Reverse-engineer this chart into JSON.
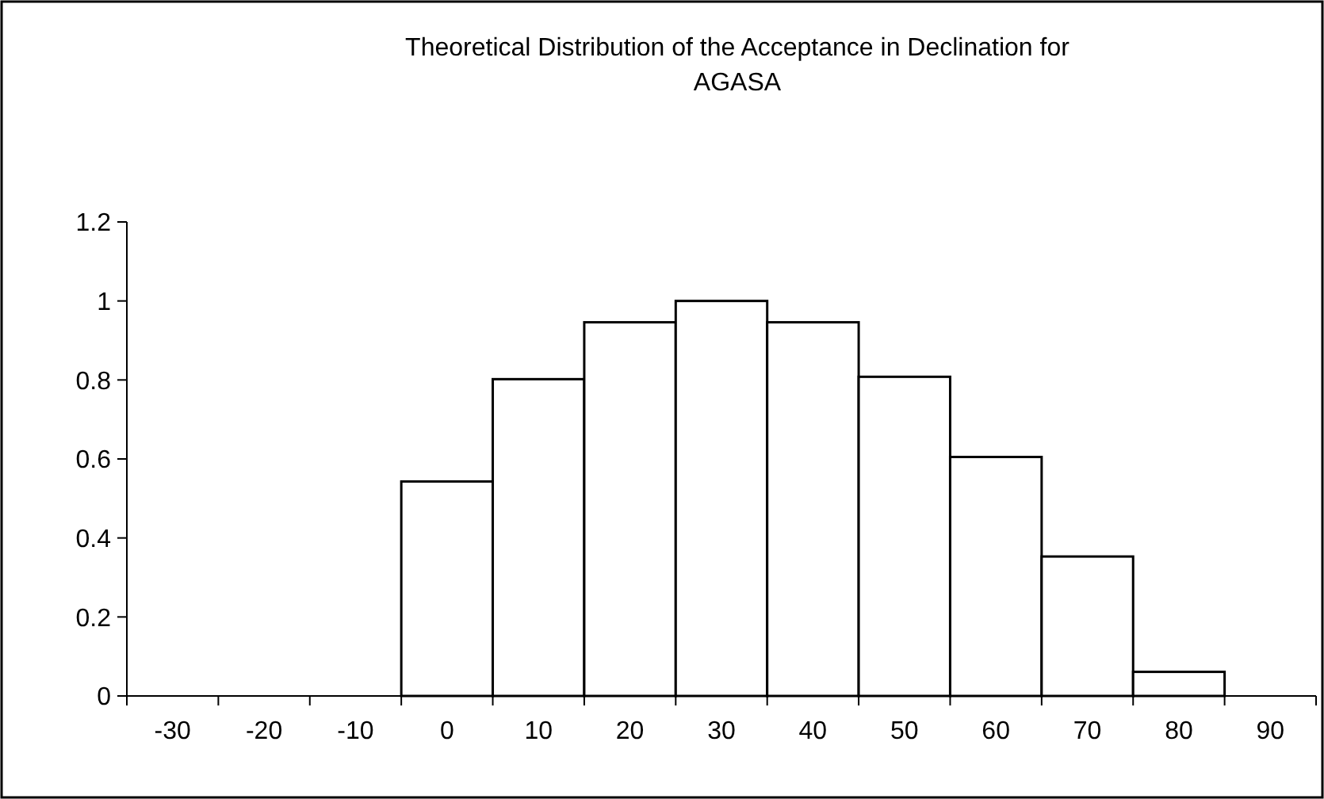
{
  "chart_data": {
    "type": "bar",
    "title": "Theoretical Distribution of the Acceptance in Declination for\nAGASA",
    "categories": [
      "-30",
      "-20",
      "-10",
      "0",
      "10",
      "20",
      "30",
      "40",
      "50",
      "60",
      "70",
      "80",
      "90"
    ],
    "values": [
      0,
      0,
      0,
      0.543,
      0.802,
      0.946,
      1.0,
      0.946,
      0.808,
      0.605,
      0.353,
      0.061,
      0
    ],
    "color": "#ffffff",
    "ylim": [
      0,
      1.2
    ],
    "yticks": [
      0,
      0.2,
      0.4,
      0.6,
      0.8,
      1,
      1.2
    ],
    "grid": false
  }
}
